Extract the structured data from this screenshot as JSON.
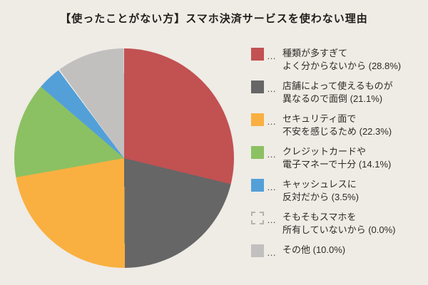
{
  "chart_data": {
    "type": "pie",
    "title": "【使ったことがない方】スマホ決済サービスを使わない理由",
    "start_angle_deg": 0,
    "direction": "clockwise",
    "legend_position": "right",
    "background": "#EFEBE5",
    "slices": [
      {
        "label": "種類が多すぎてよく分からないから",
        "value_pct": 28.8,
        "color": "#C25152",
        "swatch": "solid",
        "legend_text": "種類が多すぎて\nよく分からないから (28.8%)"
      },
      {
        "label": "店舗によって使えるものが異なるので面倒",
        "value_pct": 21.1,
        "color": "#666666",
        "swatch": "solid",
        "legend_text": "店舗によって使えるものが\n異なるので面倒 (21.1%)"
      },
      {
        "label": "セキュリティ面で不安を感じるため",
        "value_pct": 22.3,
        "color": "#F9B041",
        "swatch": "solid",
        "legend_text": "セキュリティ面で\n不安を感じるため (22.3%)"
      },
      {
        "label": "クレジットカードや電子マネーで十分",
        "value_pct": 14.1,
        "color": "#8BC162",
        "swatch": "solid",
        "legend_text": "クレジットカードや\n電子マネーで十分 (14.1%)"
      },
      {
        "label": "キャッシュレスに反対だから",
        "value_pct": 3.5,
        "color": "#53A0D9",
        "swatch": "solid",
        "legend_text": "キャッシュレスに\n反対だから (3.5%)"
      },
      {
        "label": "そもそもスマホを所有していないから",
        "value_pct": 0.0,
        "color": "none",
        "swatch": "dashed",
        "legend_text": "そもそもスマホを\n所有していないから (0.0%)"
      },
      {
        "label": "その他",
        "value_pct": 10.0,
        "color": "#C1C0BF",
        "swatch": "solid",
        "legend_text": "その他 (10.0%)"
      }
    ],
    "legend_marker_separator": "…"
  }
}
